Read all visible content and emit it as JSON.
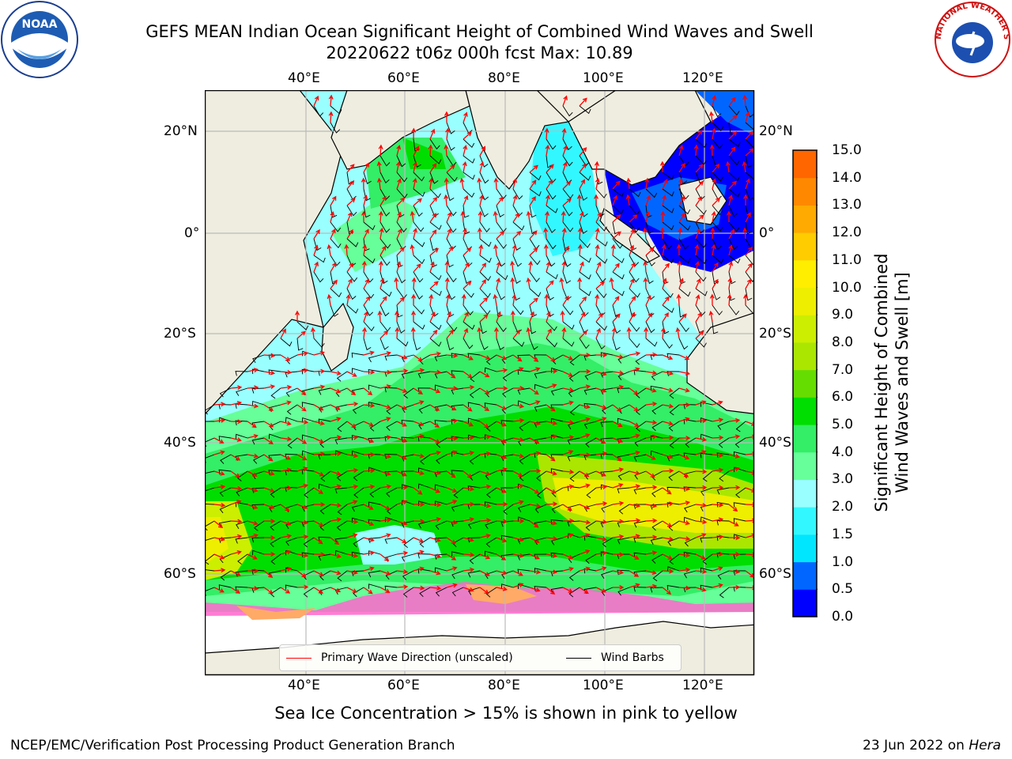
{
  "title": {
    "line1": "GEFS MEAN Indian Ocean Significant Height of Combined Wind Waves and Swell",
    "line2": "20220622 t06z 000h fcst   Max: 10.89"
  },
  "map": {
    "lon_ticks_top": [
      "40°E",
      "60°E",
      "80°E",
      "100°E",
      "120°E"
    ],
    "lon_ticks_bottom": [
      "40°E",
      "60°E",
      "80°E",
      "100°E",
      "120°E"
    ],
    "lat_ticks_left": [
      "20°N",
      "0°",
      "20°S",
      "40°S",
      "60°S"
    ],
    "lat_ticks_right": [
      "20°N",
      "0°",
      "20°S",
      "40°S",
      "60°S"
    ],
    "colors": {
      "land": "#efeddf",
      "ice_free_ocean": "#ffffff",
      "wind_barb": "#000000",
      "wave_arrow": "#ff0000",
      "grid": "#bbbbbb"
    }
  },
  "legend": {
    "primary_wave": "Primary Wave Direction (unscaled)",
    "wind_barbs": "Wind Barbs"
  },
  "colorbar": {
    "ticks": [
      "15.0",
      "14.0",
      "13.0",
      "12.0",
      "11.0",
      "10.0",
      "9.0",
      "8.0",
      "7.0",
      "6.0",
      "5.0",
      "4.0",
      "3.0",
      "2.0",
      "1.5",
      "1.0",
      "0.5",
      "0.0"
    ],
    "label_line1": "Significant Height of Combined",
    "label_line2": "Wind Waves and Swell [m]",
    "colors_bottom_to_top": [
      "#0000ff",
      "#0066ff",
      "#00e6ff",
      "#33f7ff",
      "#99ffff",
      "#66ff99",
      "#33ee66",
      "#00dd00",
      "#66dd00",
      "#aae600",
      "#ccee00",
      "#eeee00",
      "#ffee00",
      "#ffcc00",
      "#ffaa00",
      "#ff8800",
      "#ff6600",
      "#ff3300",
      "#ff0000"
    ]
  },
  "logos": {
    "noaa_text": "NOAA",
    "nws_text": "NATIONAL WEATHER SERVICE"
  },
  "caption": "Sea Ice Concentration > 15% is shown in pink to yellow",
  "footer": {
    "left": "NCEP/EMC/Verification Post Processing Product Generation Branch",
    "date": "23 Jun 2022 on ",
    "machine": "Hera"
  }
}
